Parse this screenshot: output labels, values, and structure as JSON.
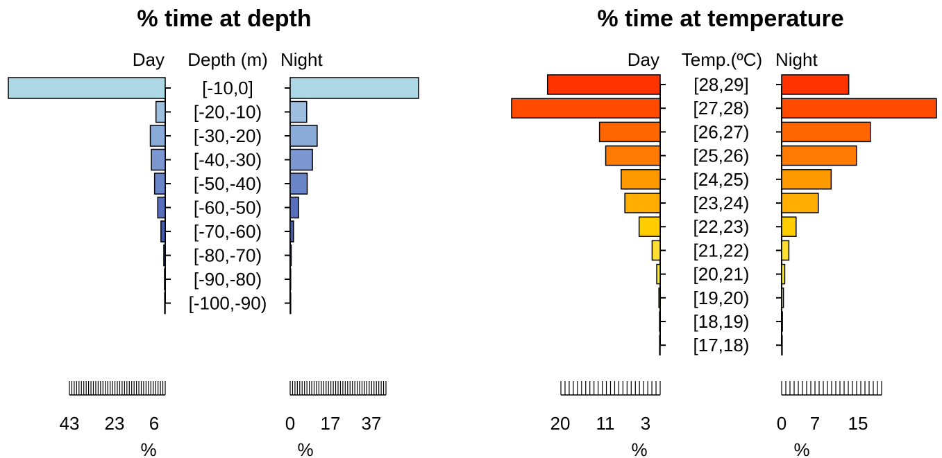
{
  "chart_data": [
    {
      "type": "bar",
      "orientation": "horizontal-back-to-back",
      "title": "% time at depth",
      "header": {
        "left": "Day",
        "center": "Depth (m)",
        "right": "Night"
      },
      "categories": [
        "[-10,0]",
        "[-20,-10)",
        "[-30,-20)",
        "[-40,-30)",
        "[-50,-40)",
        "[-60,-50)",
        "[-70,-60)",
        "[-80,-70)",
        "[-90,-80)",
        "[-100,-90)"
      ],
      "colors": [
        "#ADD8E6",
        "#9FBFE0",
        "#8AAAD8",
        "#7B96D0",
        "#6A84C8",
        "#5870BC",
        "#4658AC",
        "#36479C",
        "#2A3A8C",
        "#1E2E7C"
      ],
      "series": [
        {
          "name": "Day",
          "values": [
            44.2,
            2.6,
            4.2,
            3.9,
            3.0,
            2.1,
            1.2,
            0.4,
            0.2,
            0.1
          ]
        },
        {
          "name": "Night",
          "values": [
            49.0,
            6.3,
            10.3,
            8.5,
            6.5,
            3.2,
            1.3,
            0.4,
            0.2,
            0.1
          ]
        }
      ],
      "x_axis": {
        "unit": "%",
        "left": {
          "range": [
            0,
            44.2
          ],
          "tick_labels": [
            43,
            23,
            6
          ]
        },
        "right": {
          "range": [
            0,
            49.0
          ],
          "tick_labels": [
            0,
            17,
            37
          ]
        }
      }
    },
    {
      "type": "bar",
      "orientation": "horizontal-back-to-back",
      "title": "% time at temperature",
      "header": {
        "left": "Day",
        "center": "Temp.(ºC)",
        "right": "Night"
      },
      "categories": [
        "[28,29]",
        "[27,28)",
        "[26,27)",
        "[25,26)",
        "[24,25)",
        "[23,24)",
        "[22,23)",
        "[21,22)",
        "[20,21)",
        "[19,20)",
        "[18,19)",
        "[17,18)"
      ],
      "colors": [
        "#FF3300",
        "#FF4A00",
        "#FF6600",
        "#FF7A00",
        "#FF9900",
        "#FFAE00",
        "#FFCC00",
        "#FFE030",
        "#FFF020",
        "#D8D870",
        "#C0C080",
        "#A8A890"
      ],
      "series": [
        {
          "name": "Day",
          "values": [
            18.2,
            24.0,
            9.8,
            8.8,
            6.3,
            5.7,
            3.4,
            1.3,
            0.55,
            0.2,
            0.1,
            0.05
          ]
        },
        {
          "name": "Night",
          "values": [
            13.0,
            30.0,
            17.2,
            14.5,
            9.6,
            7.1,
            2.8,
            1.4,
            0.6,
            0.35,
            0.15,
            0.05
          ]
        }
      ],
      "x_axis": {
        "unit": "%",
        "left": {
          "range": [
            0,
            24.0
          ],
          "tick_labels": [
            20,
            11,
            3
          ]
        },
        "right": {
          "range": [
            0,
            30.0
          ],
          "tick_labels": [
            0,
            7,
            15
          ]
        }
      }
    }
  ]
}
